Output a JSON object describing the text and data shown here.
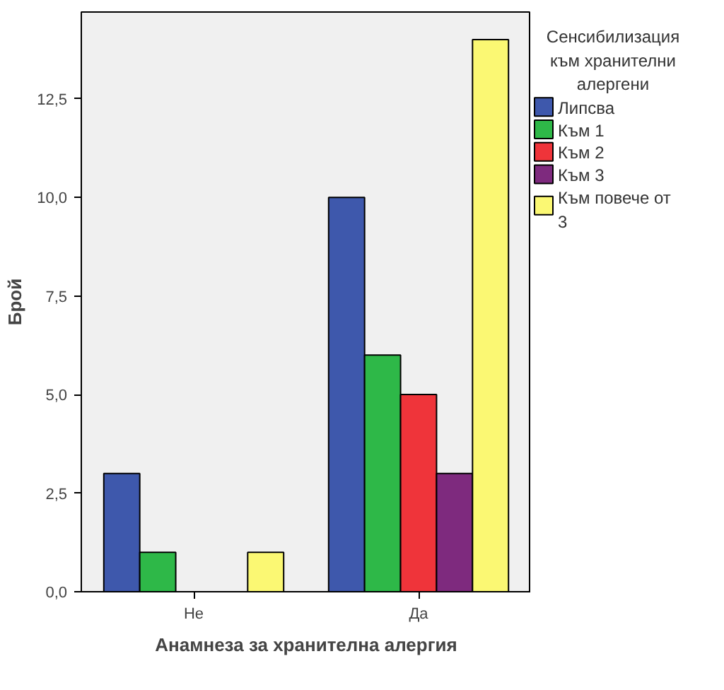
{
  "chart_data": {
    "type": "bar",
    "xlabel": "Анамнеза за хранителна алергия",
    "ylabel": "Брой",
    "legend_title": "Сенсибилизация към хранителни алергени",
    "categories": [
      "Не",
      "Да"
    ],
    "series": [
      {
        "name": "Липсва",
        "color": "#3e58ac",
        "values": [
          3,
          10
        ]
      },
      {
        "name": "Към 1",
        "color": "#2eb848",
        "values": [
          1,
          6
        ]
      },
      {
        "name": "Към 2",
        "color": "#ef343a",
        "values": [
          0,
          5
        ]
      },
      {
        "name": "Към 3",
        "color": "#7e2a7e",
        "values": [
          0,
          3
        ]
      },
      {
        "name": "Към повече от 3",
        "color": "#fbf873",
        "values": [
          1,
          14
        ]
      }
    ],
    "ylim": [
      0,
      14.7
    ],
    "yticks": [
      {
        "value": 0,
        "label": "0,0"
      },
      {
        "value": 2.5,
        "label": "2,5"
      },
      {
        "value": 5,
        "label": "5,0"
      },
      {
        "value": 7.5,
        "label": "7,5"
      },
      {
        "value": 10,
        "label": "10,0"
      },
      {
        "value": 12.5,
        "label": "12,5"
      }
    ],
    "grid": false,
    "legend": "right"
  }
}
